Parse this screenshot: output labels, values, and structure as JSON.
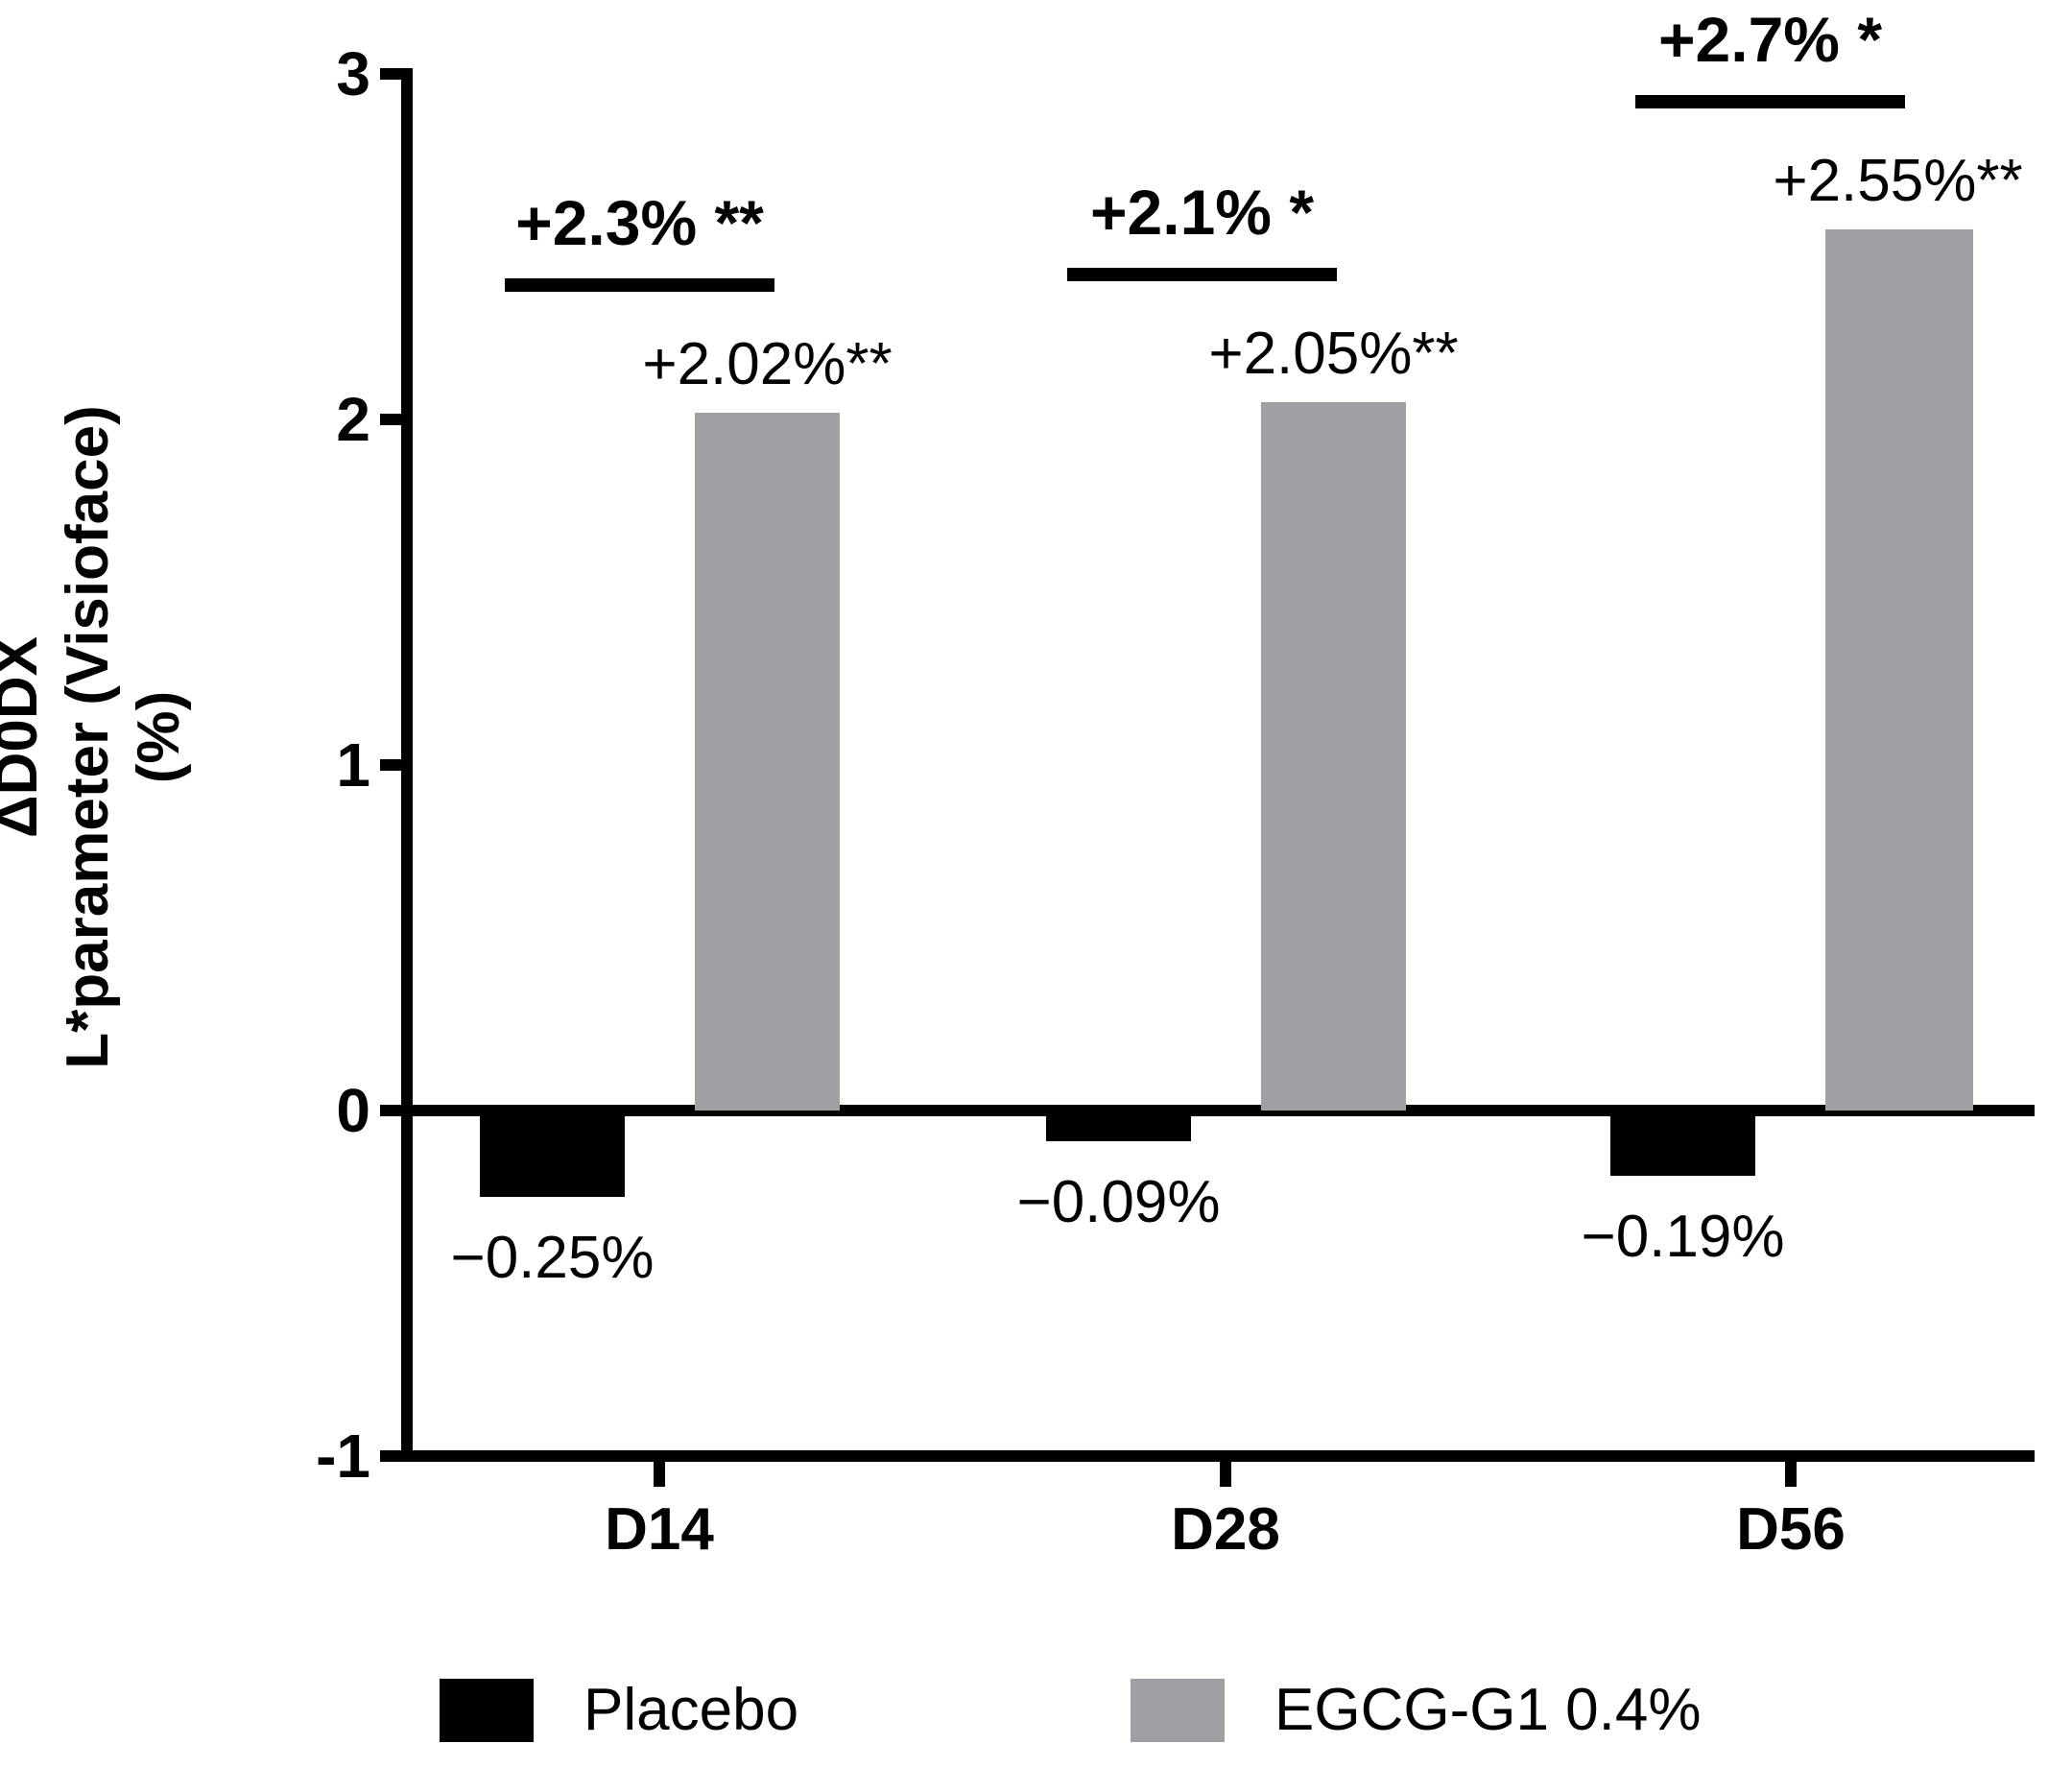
{
  "chart_data": {
    "type": "bar",
    "title": "",
    "ylabel": "ΔD0DX L*parameter (Visioface) (%)",
    "ylabel_lines": [
      "ΔD0DX",
      "L*parameter (Visioface)",
      "(%)"
    ],
    "xlabel": "",
    "categories": [
      "D14",
      "D28",
      "D56"
    ],
    "series": [
      {
        "name": "Placebo",
        "color": "#000000",
        "values": [
          -0.25,
          -0.09,
          -0.19
        ],
        "labels": [
          "−0.25%",
          "−0.09%",
          "−0.19%"
        ]
      },
      {
        "name": "EGCG-G1 0.4%",
        "color": "#a0a0a4",
        "values": [
          2.02,
          2.05,
          2.55
        ],
        "labels": [
          "+2.02%**",
          "+2.05%**",
          "+2.55%**"
        ]
      }
    ],
    "comparisons": [
      {
        "group": "D14",
        "label": "+2.3% **"
      },
      {
        "group": "D28",
        "label": "+2.1% *"
      },
      {
        "group": "D56",
        "label": "+2.7% *"
      }
    ],
    "yticks": [
      "3",
      "2",
      "1",
      "0",
      "-1"
    ],
    "ytick_values": [
      3,
      2,
      1,
      0,
      -1
    ],
    "ylim": [
      -1,
      3
    ],
    "grid": false,
    "legend_position": "bottom"
  }
}
